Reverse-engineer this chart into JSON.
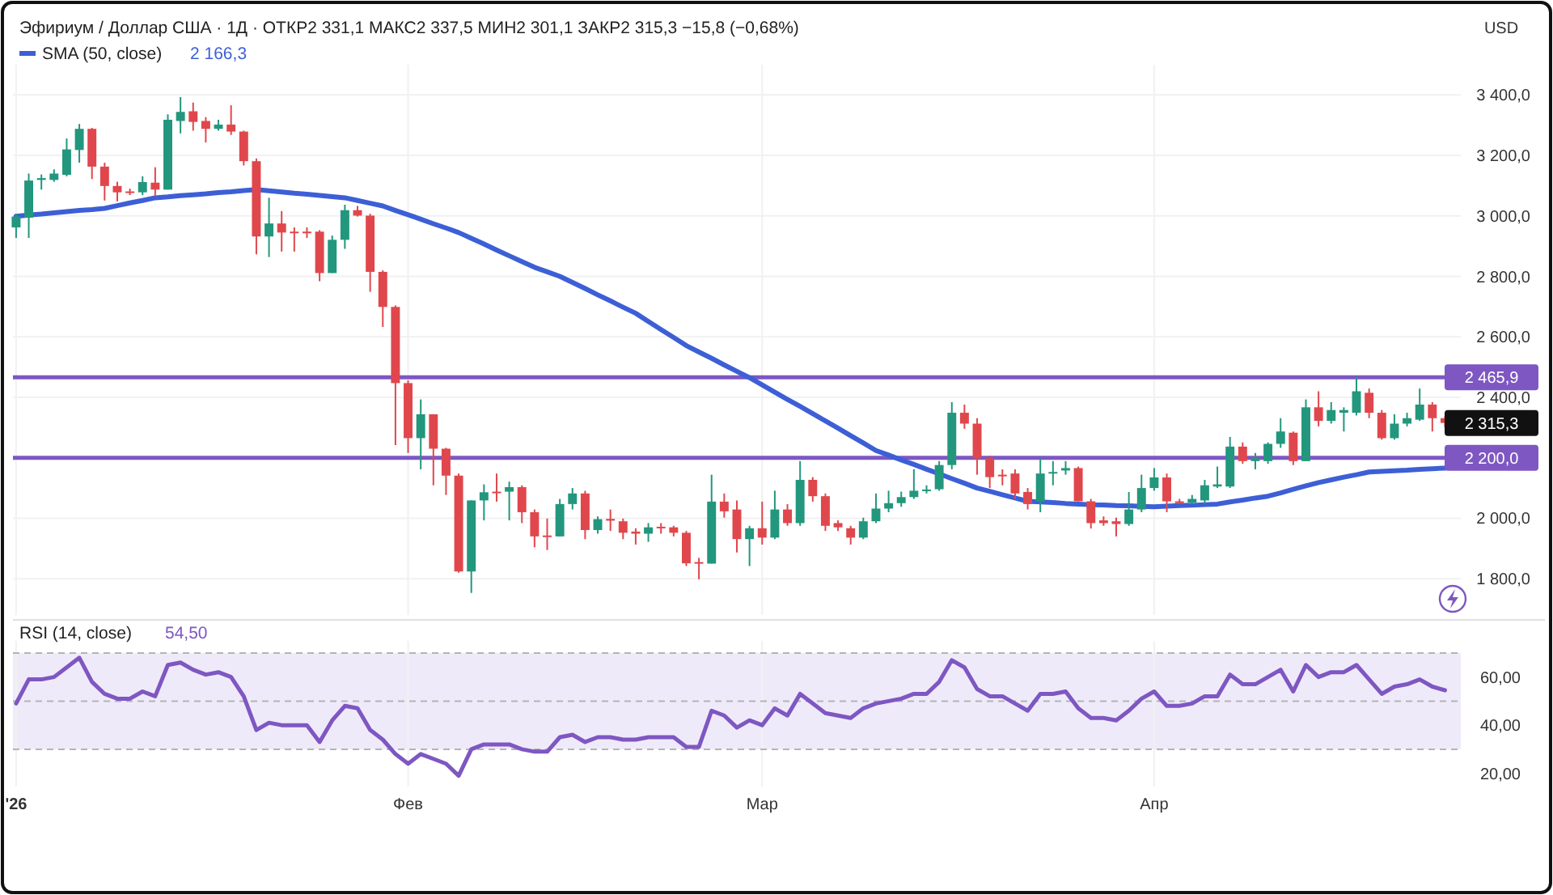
{
  "chart_data": [
    {
      "type": "candlestick",
      "title": "Эфириум / Доллар США · 1Д · ОТКР2 331,1 МАКС2 337,5 МИН2 301,1 ЗАКР2 315,3 −15,8 (−0,68%)",
      "ylabel": "USD",
      "categories": [
        null,
        null,
        null,
        null,
        null,
        null,
        null,
        null,
        null,
        null,
        null,
        null,
        null,
        null,
        null,
        null,
        null,
        null,
        null,
        null,
        null,
        null,
        null,
        null,
        null,
        null,
        null,
        null,
        null,
        null,
        null,
        null,
        null,
        null,
        null,
        null,
        null,
        null,
        null,
        null,
        null,
        null,
        null,
        null,
        null,
        null,
        null,
        null,
        null,
        null,
        null,
        null,
        null,
        null,
        null,
        null,
        null,
        null,
        null,
        null,
        null,
        null,
        null,
        null,
        null,
        null,
        null,
        null,
        null,
        null,
        null,
        null,
        null,
        null,
        null,
        null,
        null,
        null,
        null,
        null,
        null,
        null,
        null,
        null,
        null,
        null,
        null,
        null,
        null,
        null,
        null,
        null,
        null,
        null,
        null,
        null,
        null,
        null,
        null,
        null,
        null,
        null,
        null,
        null,
        null,
        null,
        null,
        null,
        null,
        null,
        null,
        null,
        null,
        null
      ],
      "ohlc": [
        [
          2962,
          3007,
          2927,
          2998
        ],
        [
          2994,
          3140,
          2927,
          3117
        ],
        [
          3119,
          3137,
          3087,
          3125
        ],
        [
          3119,
          3154,
          3113,
          3140
        ],
        [
          3136,
          3256,
          3131,
          3220
        ],
        [
          3218,
          3304,
          3176,
          3288
        ],
        [
          3288,
          3291,
          3122,
          3163
        ],
        [
          3163,
          3176,
          3051,
          3099
        ],
        [
          3099,
          3113,
          3048,
          3078
        ],
        [
          3081,
          3090,
          3069,
          3076
        ],
        [
          3078,
          3131,
          3069,
          3112
        ],
        [
          3110,
          3161,
          3065,
          3087
        ],
        [
          3087,
          3336,
          3087,
          3318
        ],
        [
          3314,
          3393,
          3273,
          3344
        ],
        [
          3346,
          3375,
          3282,
          3311
        ],
        [
          3314,
          3327,
          3243,
          3288
        ],
        [
          3288,
          3318,
          3282,
          3302
        ],
        [
          3302,
          3366,
          3268,
          3279
        ],
        [
          3279,
          3282,
          3167,
          3181
        ],
        [
          3181,
          3190,
          2873,
          2932
        ],
        [
          2932,
          3060,
          2864,
          2975
        ],
        [
          2975,
          3016,
          2882,
          2945
        ],
        [
          2948,
          2962,
          2882,
          2945
        ],
        [
          2948,
          2962,
          2927,
          2947
        ],
        [
          2948,
          2953,
          2784,
          2811
        ],
        [
          2811,
          2935,
          2811,
          2921
        ],
        [
          2921,
          3037,
          2891,
          3019
        ],
        [
          3019,
          3033,
          2998,
          3001
        ],
        [
          3001,
          3007,
          2749,
          2815
        ],
        [
          2815,
          2820,
          2633,
          2699
        ],
        [
          2699,
          2704,
          2242,
          2447
        ],
        [
          2447,
          2456,
          2216,
          2265
        ],
        [
          2265,
          2393,
          2162,
          2344
        ],
        [
          2344,
          2344,
          2109,
          2230
        ],
        [
          2230,
          2233,
          2077,
          2141
        ],
        [
          2141,
          2148,
          1820,
          1824
        ],
        [
          1824,
          2059,
          1753,
          2059
        ],
        [
          2059,
          2112,
          1993,
          2086
        ],
        [
          2088,
          2148,
          2055,
          2084
        ],
        [
          2088,
          2121,
          1993,
          2103
        ],
        [
          2103,
          2109,
          1984,
          2020
        ],
        [
          2020,
          2029,
          1904,
          1940
        ],
        [
          1943,
          1999,
          1895,
          1940
        ],
        [
          1940,
          2064,
          1940,
          2047
        ],
        [
          2047,
          2100,
          2029,
          2082
        ],
        [
          2082,
          2091,
          1931,
          1961
        ],
        [
          1961,
          2006,
          1949,
          1997
        ],
        [
          1998,
          2029,
          1958,
          1992
        ],
        [
          1990,
          1999,
          1931,
          1952
        ],
        [
          1956,
          1967,
          1913,
          1949
        ],
        [
          1949,
          1984,
          1922,
          1970
        ],
        [
          1972,
          1984,
          1949,
          1967
        ],
        [
          1970,
          1975,
          1940,
          1952
        ],
        [
          1952,
          1958,
          1842,
          1851
        ],
        [
          1855,
          1869,
          1798,
          1850
        ],
        [
          1850,
          2144,
          1850,
          2055
        ],
        [
          2055,
          2082,
          2002,
          2023
        ],
        [
          2029,
          2059,
          1887,
          1931
        ],
        [
          1931,
          1975,
          1842,
          1967
        ],
        [
          1967,
          2055,
          1913,
          1936
        ],
        [
          1936,
          2091,
          1931,
          2029
        ],
        [
          2029,
          2047,
          1975,
          1984
        ],
        [
          1984,
          2189,
          1975,
          2127
        ],
        [
          2127,
          2136,
          2055,
          2073
        ],
        [
          2073,
          2082,
          1958,
          1975
        ],
        [
          1984,
          1993,
          1958,
          1970
        ],
        [
          1967,
          1975,
          1913,
          1936
        ],
        [
          1936,
          2002,
          1931,
          1990
        ],
        [
          1990,
          2082,
          1984,
          2032
        ],
        [
          2032,
          2091,
          2020,
          2050
        ],
        [
          2050,
          2088,
          2038,
          2070
        ],
        [
          2070,
          2162,
          2064,
          2091
        ],
        [
          2091,
          2109,
          2082,
          2095
        ],
        [
          2096,
          2189,
          2091,
          2176
        ],
        [
          2176,
          2384,
          2162,
          2349
        ],
        [
          2349,
          2376,
          2296,
          2313
        ],
        [
          2313,
          2331,
          2144,
          2198
        ],
        [
          2198,
          2207,
          2100,
          2136
        ],
        [
          2144,
          2162,
          2109,
          2139
        ],
        [
          2148,
          2162,
          2064,
          2082
        ],
        [
          2087,
          2100,
          2029,
          2047
        ],
        [
          2056,
          2198,
          2020,
          2148
        ],
        [
          2148,
          2189,
          2109,
          2153
        ],
        [
          2158,
          2189,
          2144,
          2166
        ],
        [
          2166,
          2171,
          2056,
          2056
        ],
        [
          2056,
          2064,
          1966,
          1984
        ],
        [
          1993,
          2006,
          1975,
          1984
        ],
        [
          1990,
          2002,
          1940,
          1981
        ],
        [
          1981,
          2087,
          1975,
          2029
        ],
        [
          2029,
          2144,
          2020,
          2100
        ],
        [
          2100,
          2166,
          2091,
          2135
        ],
        [
          2135,
          2148,
          2020,
          2056
        ],
        [
          2056,
          2064,
          2047,
          2050
        ],
        [
          2052,
          2077,
          2047,
          2064
        ],
        [
          2059,
          2127,
          2047,
          2109
        ],
        [
          2105,
          2171,
          2100,
          2112
        ],
        [
          2105,
          2269,
          2100,
          2237
        ],
        [
          2237,
          2251,
          2180,
          2189
        ],
        [
          2189,
          2216,
          2162,
          2198
        ],
        [
          2189,
          2251,
          2180,
          2246
        ],
        [
          2246,
          2331,
          2233,
          2287
        ],
        [
          2283,
          2287,
          2176,
          2189
        ],
        [
          2189,
          2393,
          2189,
          2367
        ],
        [
          2367,
          2420,
          2304,
          2322
        ],
        [
          2322,
          2384,
          2313,
          2358
        ],
        [
          2349,
          2367,
          2287,
          2358
        ],
        [
          2349,
          2465,
          2340,
          2420
        ],
        [
          2415,
          2429,
          2331,
          2349
        ],
        [
          2349,
          2358,
          2260,
          2265
        ],
        [
          2265,
          2344,
          2260,
          2313
        ],
        [
          2313,
          2349,
          2304,
          2331
        ],
        [
          2326,
          2429,
          2322,
          2376
        ],
        [
          2376,
          2384,
          2287,
          2331
        ],
        [
          2331.1,
          2337.5,
          2301.1,
          2315.3
        ]
      ],
      "series": [
        {
          "type": "line",
          "name": "SMA (50, close)",
          "color": "#3d5fd6",
          "values": [
            2999,
            3003,
            3006,
            3010,
            3014,
            3018,
            3021,
            3025,
            3034,
            3043,
            3051,
            3060,
            3063,
            3067,
            3070,
            3073,
            3077,
            3080,
            3084,
            3087,
            3083,
            3079,
            3075,
            3072,
            3068,
            3064,
            3060,
            3051,
            3042,
            3033,
            3018,
            3004,
            2989,
            2974,
            2960,
            2945,
            2926,
            2907,
            2887,
            2868,
            2849,
            2830,
            2815,
            2800,
            2780,
            2760,
            2739,
            2719,
            2698,
            2678,
            2651,
            2624,
            2598,
            2571,
            2550,
            2529,
            2507,
            2486,
            2465,
            2441,
            2417,
            2393,
            2370,
            2346,
            2322,
            2298,
            2273,
            2249,
            2224,
            2209,
            2193,
            2178,
            2162,
            2147,
            2131,
            2116,
            2100,
            2089,
            2078,
            2067,
            2056,
            2054,
            2052,
            2049,
            2047,
            2045,
            2044,
            2042,
            2041,
            2039,
            2038,
            2040,
            2042,
            2043,
            2045,
            2047,
            2054,
            2060,
            2067,
            2073,
            2084,
            2096,
            2107,
            2118,
            2127,
            2136,
            2144,
            2153,
            2155,
            2157,
            2159,
            2162,
            2164,
            2166
          ]
        }
      ],
      "annotations": [
        "2 166,3",
        "2 315,3"
      ],
      "ylim": [
        1680,
        3500
      ],
      "yticks": [
        {
          "value": 1800,
          "label": "1 800,0"
        },
        {
          "value": 2000,
          "label": "2 000,0"
        },
        {
          "value": 2200,
          "label": null
        },
        {
          "value": 2400,
          "label": "2 400,0"
        },
        {
          "value": 2600,
          "label": "2 600,0"
        },
        {
          "value": 2800,
          "label": "2 800,0"
        },
        {
          "value": 3000,
          "label": "3 000,0"
        },
        {
          "value": 3200,
          "label": "3 200,0"
        },
        {
          "value": 3400,
          "label": "3 400,0"
        }
      ],
      "ref_lines": [
        {
          "axis": "y",
          "value": 2465.9,
          "label": "2 465,9",
          "color": "#7e57c2"
        },
        {
          "axis": "y",
          "value": 2200,
          "label": "2 200,0",
          "color": "#7e57c2"
        }
      ],
      "grid": true,
      "legend": "top left",
      "tick_labels": "y"
    },
    {
      "type": "line",
      "title": "RSI (14, close)",
      "annotations": [
        "54,50"
      ],
      "categories": [
        "'26",
        null,
        null,
        null,
        null,
        null,
        null,
        null,
        null,
        null,
        null,
        null,
        null,
        null,
        null,
        null,
        null,
        null,
        null,
        null,
        null,
        null,
        null,
        null,
        null,
        null,
        null,
        null,
        null,
        null,
        null,
        "Фев",
        null,
        null,
        null,
        null,
        null,
        null,
        null,
        null,
        null,
        null,
        null,
        null,
        null,
        null,
        null,
        null,
        null,
        null,
        null,
        null,
        null,
        null,
        null,
        null,
        null,
        null,
        null,
        "Мар",
        null,
        null,
        null,
        null,
        null,
        null,
        null,
        null,
        null,
        null,
        null,
        null,
        null,
        null,
        null,
        null,
        null,
        null,
        null,
        null,
        null,
        null,
        null,
        null,
        null,
        null,
        null,
        null,
        null,
        null,
        "Апр",
        null,
        null,
        null,
        null,
        null,
        null,
        null,
        null,
        null,
        null,
        null,
        null,
        null,
        null,
        null,
        null,
        null,
        null,
        null,
        null,
        null,
        null,
        null
      ],
      "series": [
        {
          "color": "#7e57c2",
          "values": [
            49,
            59,
            59,
            60,
            64,
            68,
            58,
            53,
            51,
            51,
            54,
            52,
            65,
            66,
            63,
            61,
            62,
            60,
            52,
            38,
            41,
            40,
            40,
            40,
            33,
            42,
            48,
            47,
            38,
            34,
            28,
            24,
            28,
            26,
            24,
            19,
            30,
            32,
            32,
            32,
            30,
            29,
            29,
            35,
            36,
            33,
            35,
            35,
            34,
            34,
            35,
            35,
            35,
            31,
            31,
            46,
            44,
            39,
            42,
            40,
            47,
            44,
            53,
            49,
            45,
            44,
            43,
            47,
            49,
            50,
            51,
            53,
            53,
            58,
            67,
            64,
            55,
            52,
            52,
            49,
            46,
            53,
            53,
            54,
            47,
            43,
            43,
            42,
            46,
            51,
            54,
            48,
            48,
            49,
            52,
            52,
            61,
            57,
            57,
            60,
            63,
            54,
            65,
            60,
            62,
            62,
            65,
            59,
            53,
            56,
            57,
            59,
            56,
            54.5
          ]
        }
      ],
      "ylim": [
        14.5,
        75
      ],
      "yticks": [
        {
          "value": 20,
          "label": "20,00"
        },
        {
          "value": 40,
          "label": "40,00"
        },
        {
          "value": 60,
          "label": "60,00"
        }
      ],
      "bands": [
        {
          "axis": "y",
          "from": 30,
          "to": 70,
          "color": "#efeafa"
        }
      ],
      "ref_lines": [
        {
          "axis": "y",
          "value": 70,
          "color": "#b4b4b4",
          "line_style": "dashed"
        },
        {
          "axis": "y",
          "value": 50,
          "color": "#b4b4b4",
          "line_style": "dashed"
        },
        {
          "axis": "y",
          "value": 30,
          "color": "#b4b4b4",
          "line_style": "dashed"
        }
      ],
      "grid": "x"
    }
  ]
}
